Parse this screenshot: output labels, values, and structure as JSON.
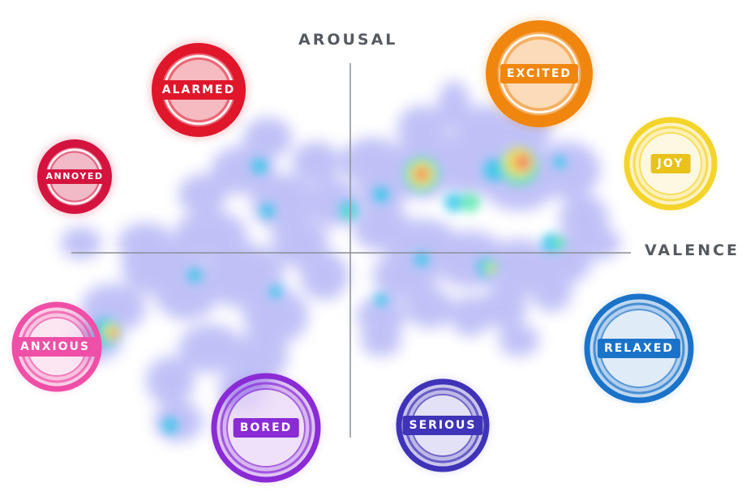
{
  "axes": {
    "vertical_label": "AROUSAL",
    "horizontal_label": "VALENCE",
    "line_color": "#8a8f96"
  },
  "emotions": [
    {
      "name": "ALARMED",
      "color": "#e0162b",
      "style": "blob"
    },
    {
      "name": "ANNOYED",
      "color": "#d4133f",
      "style": "blob"
    },
    {
      "name": "ANXIOUS",
      "color": "#ef4fa6",
      "style": "ring"
    },
    {
      "name": "BORED",
      "color": "#8a2bd6",
      "style": "ring"
    },
    {
      "name": "SERIOUS",
      "color": "#3f33b8",
      "style": "ring"
    },
    {
      "name": "RELAXED",
      "color": "#1a73c9",
      "style": "ring"
    },
    {
      "name": "JOY",
      "color": "#f4d42a",
      "style": "ring"
    },
    {
      "name": "EXCITED",
      "color": "#f0860e",
      "style": "blob"
    }
  ],
  "heatmap_colors": [
    "#8c8ff0",
    "#35c8ea",
    "#5ae8b0",
    "#f0e24a",
    "#ff7c50"
  ]
}
